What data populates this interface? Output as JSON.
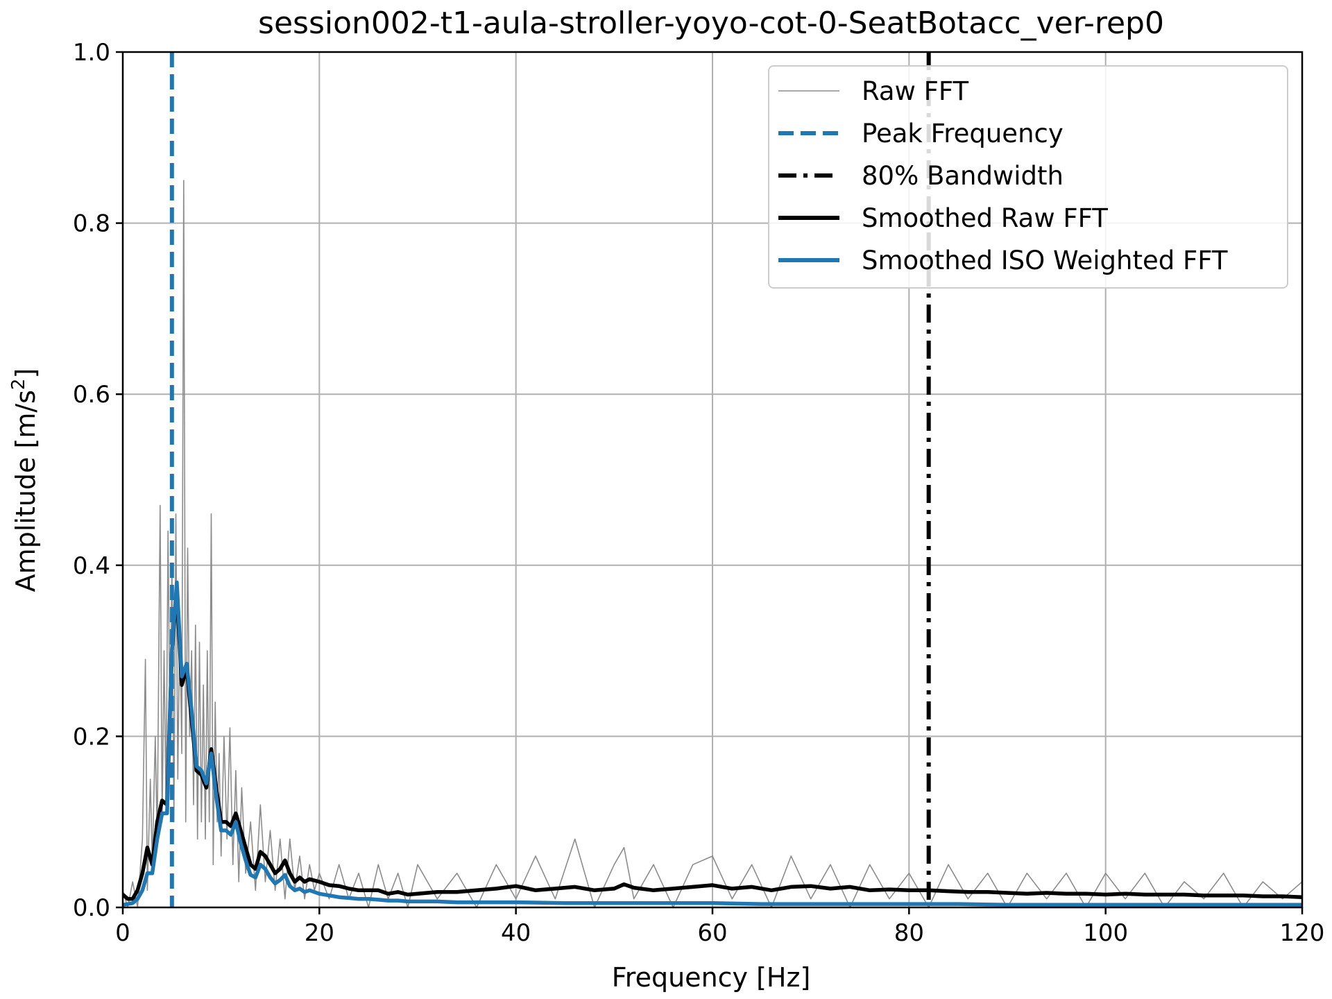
{
  "chart_data": {
    "type": "line",
    "title": "session002-t1-aula-stroller-yoyo-cot-0-SeatBotacc_ver-rep0",
    "xlabel": "Frequency [Hz]",
    "ylabel_main": "Amplitude [m/s",
    "ylabel_sup": "2",
    "ylabel_close": "]",
    "xlim": [
      0,
      120
    ],
    "ylim": [
      0,
      1.0
    ],
    "xticks": [
      0,
      20,
      40,
      60,
      80,
      100,
      120
    ],
    "xtick_labels": [
      "0",
      "20",
      "40",
      "60",
      "80",
      "100",
      "120"
    ],
    "yticks": [
      0,
      0.2,
      0.4,
      0.6,
      0.8,
      1.0
    ],
    "ytick_labels": [
      "0.0",
      "0.2",
      "0.4",
      "0.6",
      "0.8",
      "1.0"
    ],
    "grid": true,
    "legend_position": "top-right",
    "peak_frequency": 5.0,
    "bandwidth_80": 82.0,
    "series": [
      {
        "name": "Raw FFT",
        "style": "thin",
        "color": "#8c8c8c",
        "x": [
          0,
          0.5,
          1,
          1.5,
          2,
          2.3,
          2.5,
          2.8,
          3,
          3.3,
          3.5,
          3.8,
          4,
          4.2,
          4.4,
          4.6,
          4.8,
          5,
          5.2,
          5.4,
          5.6,
          5.8,
          6,
          6.2,
          6.4,
          6.6,
          6.8,
          7,
          7.2,
          7.4,
          7.6,
          7.8,
          8,
          8.2,
          8.4,
          8.6,
          8.8,
          9,
          9.2,
          9.4,
          9.6,
          9.8,
          10,
          10.3,
          10.6,
          10.9,
          11.2,
          11.5,
          11.8,
          12.1,
          12.5,
          13,
          13.5,
          14,
          14.5,
          15,
          15.5,
          16,
          16.5,
          17,
          17.5,
          18,
          18.5,
          19,
          19.5,
          20,
          21,
          22,
          23,
          24,
          25,
          26,
          27,
          28,
          29,
          30,
          32,
          34,
          36,
          38,
          40,
          42,
          44,
          46,
          48,
          50,
          51,
          52,
          54,
          56,
          58,
          60,
          62,
          64,
          66,
          68,
          70,
          72,
          74,
          76,
          78,
          80,
          82,
          84,
          86,
          88,
          90,
          92,
          94,
          96,
          98,
          100,
          102,
          104,
          106,
          108,
          110,
          112,
          114,
          116,
          118,
          120
        ],
        "y": [
          0.02,
          0.0,
          0.03,
          0.0,
          0.08,
          0.29,
          0.02,
          0.15,
          0.05,
          0.2,
          0.08,
          0.47,
          0.1,
          0.3,
          0.12,
          0.44,
          0.2,
          0.4,
          0.1,
          0.46,
          0.15,
          0.34,
          0.18,
          0.85,
          0.1,
          0.42,
          0.2,
          0.3,
          0.12,
          0.33,
          0.08,
          0.31,
          0.1,
          0.26,
          0.08,
          0.3,
          0.1,
          0.46,
          0.05,
          0.24,
          0.1,
          0.18,
          0.06,
          0.2,
          0.08,
          0.21,
          0.05,
          0.16,
          0.03,
          0.14,
          0.04,
          0.1,
          0.02,
          0.12,
          0.03,
          0.09,
          0.02,
          0.08,
          0.01,
          0.08,
          0.02,
          0.06,
          0.01,
          0.05,
          0.02,
          0.04,
          0.01,
          0.05,
          0.01,
          0.04,
          0.0,
          0.05,
          0.01,
          0.04,
          0.0,
          0.05,
          0.01,
          0.04,
          0.0,
          0.05,
          0.01,
          0.06,
          0.01,
          0.08,
          0.0,
          0.05,
          0.07,
          0.01,
          0.05,
          0.0,
          0.05,
          0.06,
          0.01,
          0.05,
          0.0,
          0.06,
          0.01,
          0.05,
          0.0,
          0.05,
          0.01,
          0.04,
          0.0,
          0.05,
          0.01,
          0.04,
          0.0,
          0.04,
          0.01,
          0.04,
          0.0,
          0.04,
          0.01,
          0.04,
          0.0,
          0.03,
          0.01,
          0.04,
          0.0,
          0.03,
          0.01,
          0.03
        ]
      },
      {
        "name": "Smoothed Raw FFT",
        "style": "solid",
        "color": "#000000",
        "x": [
          0,
          0.5,
          1,
          1.5,
          2,
          2.5,
          3,
          3.5,
          4,
          4.5,
          5,
          5.5,
          6,
          6.5,
          7,
          7.5,
          8,
          8.5,
          9,
          9.5,
          10,
          10.5,
          11,
          11.5,
          12,
          12.5,
          13,
          13.5,
          14,
          14.5,
          15,
          15.5,
          16,
          16.5,
          17,
          17.5,
          18,
          18.5,
          19,
          20,
          21,
          22,
          23,
          24,
          25,
          26,
          27,
          28,
          29,
          30,
          32,
          34,
          36,
          38,
          40,
          42,
          44,
          46,
          48,
          50,
          51,
          52,
          54,
          56,
          58,
          60,
          62,
          64,
          66,
          68,
          70,
          72,
          74,
          76,
          78,
          80,
          82,
          84,
          86,
          88,
          90,
          92,
          94,
          96,
          98,
          100,
          102,
          104,
          106,
          108,
          110,
          112,
          114,
          116,
          118,
          120
        ],
        "y": [
          0.015,
          0.01,
          0.01,
          0.02,
          0.04,
          0.07,
          0.05,
          0.1,
          0.125,
          0.12,
          0.3,
          0.37,
          0.26,
          0.28,
          0.22,
          0.16,
          0.155,
          0.14,
          0.185,
          0.14,
          0.1,
          0.1,
          0.095,
          0.11,
          0.09,
          0.07,
          0.05,
          0.045,
          0.065,
          0.06,
          0.05,
          0.04,
          0.045,
          0.055,
          0.04,
          0.03,
          0.035,
          0.03,
          0.033,
          0.03,
          0.026,
          0.025,
          0.022,
          0.02,
          0.02,
          0.02,
          0.016,
          0.018,
          0.015,
          0.016,
          0.018,
          0.018,
          0.02,
          0.022,
          0.025,
          0.02,
          0.022,
          0.024,
          0.02,
          0.022,
          0.027,
          0.023,
          0.02,
          0.022,
          0.024,
          0.026,
          0.022,
          0.024,
          0.02,
          0.024,
          0.025,
          0.022,
          0.024,
          0.02,
          0.021,
          0.02,
          0.02,
          0.019,
          0.018,
          0.018,
          0.017,
          0.016,
          0.017,
          0.016,
          0.016,
          0.015,
          0.016,
          0.015,
          0.015,
          0.015,
          0.014,
          0.014,
          0.014,
          0.013,
          0.013,
          0.012
        ]
      },
      {
        "name": "Smoothed ISO Weighted FFT",
        "style": "solid",
        "color": "#1f77b4",
        "x": [
          0,
          0.5,
          1,
          1.5,
          2,
          2.5,
          3,
          3.5,
          4,
          4.5,
          5,
          5.5,
          6,
          6.5,
          7,
          7.5,
          8,
          8.5,
          9,
          9.5,
          10,
          10.5,
          11,
          11.5,
          12,
          12.5,
          13,
          13.5,
          14,
          14.5,
          15,
          15.5,
          16,
          16.5,
          17,
          17.5,
          18,
          18.5,
          19,
          20,
          21,
          22,
          23,
          24,
          25,
          26,
          27,
          28,
          29,
          30,
          32,
          34,
          36,
          38,
          40,
          45,
          50,
          55,
          60,
          65,
          70,
          75,
          80,
          85,
          90,
          95,
          100,
          105,
          110,
          115,
          120
        ],
        "y": [
          0.003,
          0.004,
          0.005,
          0.01,
          0.02,
          0.04,
          0.04,
          0.08,
          0.11,
          0.11,
          0.3,
          0.38,
          0.27,
          0.285,
          0.23,
          0.165,
          0.16,
          0.145,
          0.18,
          0.13,
          0.09,
          0.09,
          0.085,
          0.1,
          0.075,
          0.055,
          0.038,
          0.035,
          0.05,
          0.045,
          0.035,
          0.028,
          0.032,
          0.038,
          0.025,
          0.02,
          0.022,
          0.018,
          0.02,
          0.016,
          0.014,
          0.012,
          0.011,
          0.01,
          0.01,
          0.009,
          0.008,
          0.008,
          0.007,
          0.007,
          0.007,
          0.006,
          0.006,
          0.006,
          0.006,
          0.005,
          0.005,
          0.005,
          0.005,
          0.004,
          0.004,
          0.004,
          0.004,
          0.004,
          0.003,
          0.003,
          0.003,
          0.003,
          0.003,
          0.003,
          0.003
        ]
      }
    ],
    "legend": [
      {
        "label": "Raw FFT",
        "style": "thin",
        "color": "#8c8c8c"
      },
      {
        "label": "Peak Frequency",
        "style": "dashed",
        "color": "#1f77b4"
      },
      {
        "label": "80% Bandwidth",
        "style": "dashdot",
        "color": "#000000"
      },
      {
        "label": "Smoothed Raw FFT",
        "style": "solid",
        "color": "#000000"
      },
      {
        "label": "Smoothed ISO Weighted FFT",
        "style": "solid",
        "color": "#1f77b4"
      }
    ]
  }
}
